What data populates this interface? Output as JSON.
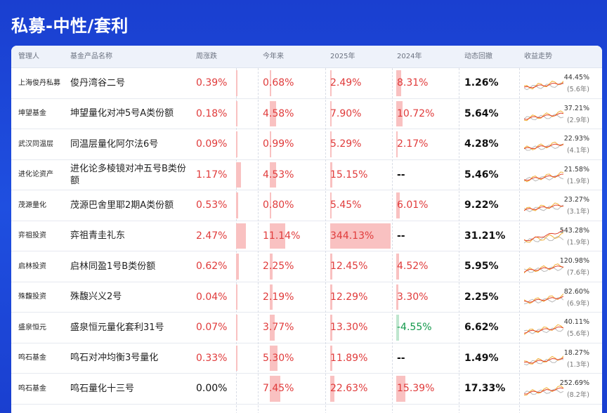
{
  "page_title": "私募-中性/套利",
  "headers": [
    "管理人",
    "基金产品名称",
    "周涨跌",
    "今年来",
    "2025年",
    "2024年",
    "动态回撤",
    "收益走势"
  ],
  "colors": {
    "positive": "#e03b3b",
    "negative": "#11984a",
    "bar_pos": "#f9c1c1",
    "bar_neg": "#bfe6cf",
    "line_main": "#e0402b",
    "line_orange": "#f2b035",
    "line_gray": "#b9b9b9"
  },
  "rows": [
    {
      "manager": "上海俊丹私募",
      "fund": "俊丹湾谷二号",
      "weekly": "0.39%",
      "ytd": "0.68%",
      "y2025": "2.49%",
      "y2024": "8.31%",
      "drawdown": "1.26%",
      "return_pct": "44.45%",
      "return_years": "(5.6年)",
      "weekly_level": 0.16,
      "ytd_level": 0.06,
      "y2025_level": 0.01,
      "y2024_level": 0.1,
      "weekly_sign": "pos",
      "ytd_sign": "pos",
      "y2025_sign": "pos",
      "y2024_sign": "pos"
    },
    {
      "manager": "坤望基金",
      "fund": "坤望量化对冲5号A类份额",
      "weekly": "0.18%",
      "ytd": "4.58%",
      "y2025": "7.90%",
      "y2024": "10.72%",
      "drawdown": "5.64%",
      "return_pct": "37.21%",
      "return_years": "(2.9年)",
      "weekly_level": 0.07,
      "ytd_level": 0.41,
      "y2025_level": 0.02,
      "y2024_level": 0.12,
      "weekly_sign": "pos",
      "ytd_sign": "pos",
      "y2025_sign": "pos",
      "y2024_sign": "pos"
    },
    {
      "manager": "武汉同温层",
      "fund": "同温层量化阿尔法6号",
      "weekly": "0.09%",
      "ytd": "0.99%",
      "y2025": "5.29%",
      "y2024": "2.17%",
      "drawdown": "4.28%",
      "return_pct": "22.93%",
      "return_years": "(4.1年)",
      "weekly_level": 0.04,
      "ytd_level": 0.09,
      "y2025_level": 0.02,
      "y2024_level": 0.03,
      "weekly_sign": "pos",
      "ytd_sign": "pos",
      "y2025_sign": "pos",
      "y2024_sign": "pos"
    },
    {
      "manager": "进化论资产",
      "fund": "进化论多棱镜对冲五号B类份额",
      "weekly": "1.17%",
      "ytd": "4.53%",
      "y2025": "15.15%",
      "y2024": "--",
      "drawdown": "5.46%",
      "return_pct": "21.58%",
      "return_years": "(1.9年)",
      "weekly_level": 0.47,
      "ytd_level": 0.41,
      "y2025_level": 0.04,
      "y2024_level": 0,
      "weekly_sign": "pos",
      "ytd_sign": "pos",
      "y2025_sign": "pos",
      "y2024_sign": "none"
    },
    {
      "manager": "茂源量化",
      "fund": "茂源巴舍里耶2期A类份额",
      "weekly": "0.53%",
      "ytd": "0.80%",
      "y2025": "5.45%",
      "y2024": "6.01%",
      "drawdown": "9.22%",
      "return_pct": "23.27%",
      "return_years": "(3.1年)",
      "weekly_level": 0.21,
      "ytd_level": 0.07,
      "y2025_level": 0.02,
      "y2024_level": 0.07,
      "weekly_sign": "pos",
      "ytd_sign": "pos",
      "y2025_sign": "pos",
      "y2024_sign": "pos"
    },
    {
      "manager": "弈祖投资",
      "fund": "弈祖青圭礼东",
      "weekly": "2.47%",
      "ytd": "11.14%",
      "y2025": "344.13%",
      "y2024": "--",
      "drawdown": "31.21%",
      "return_pct": "543.28%",
      "return_years": "(1.9年)",
      "weekly_level": 1.0,
      "ytd_level": 1.0,
      "y2025_level": 1.0,
      "y2024_level": 0,
      "weekly_sign": "pos",
      "ytd_sign": "pos",
      "y2025_sign": "pos",
      "y2024_sign": "none"
    },
    {
      "manager": "启林投资",
      "fund": "启林同盈1号B类份额",
      "weekly": "0.62%",
      "ytd": "2.25%",
      "y2025": "12.45%",
      "y2024": "4.52%",
      "drawdown": "5.95%",
      "return_pct": "120.98%",
      "return_years": "(7.6年)",
      "weekly_level": 0.25,
      "ytd_level": 0.2,
      "y2025_level": 0.04,
      "y2024_level": 0.05,
      "weekly_sign": "pos",
      "ytd_sign": "pos",
      "y2025_sign": "pos",
      "y2024_sign": "pos"
    },
    {
      "manager": "殊馥投资",
      "fund": "殊馥兴义2号",
      "weekly": "0.04%",
      "ytd": "2.19%",
      "y2025": "12.29%",
      "y2024": "3.30%",
      "drawdown": "2.25%",
      "return_pct": "82.60%",
      "return_years": "(6.9年)",
      "weekly_level": 0.02,
      "ytd_level": 0.2,
      "y2025_level": 0.04,
      "y2024_level": 0.04,
      "weekly_sign": "pos",
      "ytd_sign": "pos",
      "y2025_sign": "pos",
      "y2024_sign": "pos"
    },
    {
      "manager": "盛泉恒元",
      "fund": "盛泉恒元量化套利31号",
      "weekly": "0.07%",
      "ytd": "3.77%",
      "y2025": "13.30%",
      "y2024": "-4.55%",
      "drawdown": "6.62%",
      "return_pct": "40.11%",
      "return_years": "(5.6年)",
      "weekly_level": 0.03,
      "ytd_level": 0.34,
      "y2025_level": 0.04,
      "y2024_level": 0.05,
      "weekly_sign": "pos",
      "ytd_sign": "pos",
      "y2025_sign": "pos",
      "y2024_sign": "neg"
    },
    {
      "manager": "鸣石基金",
      "fund": "鸣石对冲均衡3号量化",
      "weekly": "0.33%",
      "ytd": "5.30%",
      "y2025": "11.89%",
      "y2024": "--",
      "drawdown": "1.49%",
      "return_pct": "18.27%",
      "return_years": "(1.3年)",
      "weekly_level": 0.13,
      "ytd_level": 0.48,
      "y2025_level": 0.03,
      "y2024_level": 0,
      "weekly_sign": "pos",
      "ytd_sign": "pos",
      "y2025_sign": "pos",
      "y2024_sign": "none"
    },
    {
      "manager": "鸣石基金",
      "fund": "鸣石量化十三号",
      "weekly": "0.00%",
      "ytd": "7.45%",
      "y2025": "22.63%",
      "y2024": "15.39%",
      "drawdown": "17.33%",
      "return_pct": "252.69%",
      "return_years": "(8.2年)",
      "weekly_level": 0,
      "ytd_level": 0.67,
      "y2025_level": 0.07,
      "y2024_level": 0.18,
      "weekly_sign": "zero",
      "ytd_sign": "pos",
      "y2025_sign": "pos",
      "y2024_sign": "pos"
    }
  ]
}
